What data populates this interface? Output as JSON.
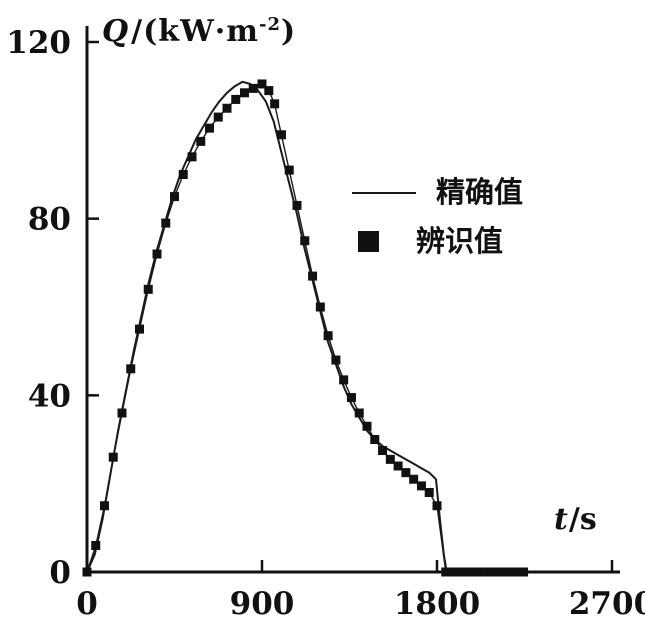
{
  "chart_data": {
    "type": "line",
    "title": "",
    "xlabel": {
      "var": "t",
      "unit": "/s"
    },
    "ylabel": {
      "var": "Q",
      "unit_prefix": "/(kW·m",
      "unit_sup": "-2",
      "unit_suffix": ")"
    },
    "xlim": [
      0,
      2700
    ],
    "ylim": [
      0,
      120
    ],
    "x_ticks": [
      0,
      900,
      1800,
      2700
    ],
    "y_ticks": [
      0,
      40,
      80,
      120
    ],
    "grid": false,
    "legend_position": "center-right",
    "line_color": "#1a1a1a",
    "marker_color": "#111111",
    "series": [
      {
        "name": "精确值",
        "type": "line",
        "marker": "none",
        "points": [
          [
            0,
            0
          ],
          [
            40,
            4
          ],
          [
            80,
            12
          ],
          [
            120,
            22
          ],
          [
            160,
            32
          ],
          [
            200,
            41
          ],
          [
            240,
            50
          ],
          [
            280,
            58
          ],
          [
            320,
            66
          ],
          [
            360,
            73
          ],
          [
            400,
            79
          ],
          [
            440,
            85
          ],
          [
            480,
            90
          ],
          [
            520,
            94
          ],
          [
            560,
            98
          ],
          [
            600,
            101
          ],
          [
            640,
            104
          ],
          [
            680,
            106.5
          ],
          [
            720,
            108.5
          ],
          [
            760,
            110
          ],
          [
            800,
            111
          ],
          [
            840,
            110.5
          ],
          [
            880,
            109
          ],
          [
            920,
            106.5
          ],
          [
            960,
            102
          ],
          [
            1000,
            95
          ],
          [
            1040,
            88
          ],
          [
            1080,
            81
          ],
          [
            1120,
            73
          ],
          [
            1160,
            66
          ],
          [
            1200,
            59
          ],
          [
            1240,
            52
          ],
          [
            1280,
            47
          ],
          [
            1320,
            42
          ],
          [
            1360,
            38
          ],
          [
            1400,
            35
          ],
          [
            1440,
            32
          ],
          [
            1480,
            30
          ],
          [
            1520,
            28.5
          ],
          [
            1560,
            27.5
          ],
          [
            1600,
            26.5
          ],
          [
            1640,
            25.5
          ],
          [
            1680,
            24.5
          ],
          [
            1720,
            23.5
          ],
          [
            1760,
            22.5
          ],
          [
            1795,
            21
          ],
          [
            1815,
            12
          ],
          [
            1835,
            4
          ],
          [
            1850,
            0
          ],
          [
            1950,
            0
          ],
          [
            2050,
            0
          ],
          [
            2150,
            0
          ],
          [
            2250,
            0
          ]
        ]
      },
      {
        "name": "辨识值",
        "type": "line+marker",
        "marker": "filled-square",
        "points": [
          [
            0,
            0
          ],
          [
            45,
            6
          ],
          [
            90,
            15
          ],
          [
            135,
            26
          ],
          [
            180,
            36
          ],
          [
            225,
            46
          ],
          [
            270,
            55
          ],
          [
            315,
            64
          ],
          [
            360,
            72
          ],
          [
            405,
            79
          ],
          [
            450,
            85
          ],
          [
            495,
            90
          ],
          [
            540,
            94
          ],
          [
            585,
            97.5
          ],
          [
            630,
            100.5
          ],
          [
            675,
            103
          ],
          [
            720,
            105
          ],
          [
            765,
            107
          ],
          [
            810,
            108.5
          ],
          [
            855,
            109.5
          ],
          [
            900,
            110.5
          ],
          [
            935,
            109
          ],
          [
            965,
            106
          ],
          [
            1000,
            99
          ],
          [
            1040,
            91
          ],
          [
            1080,
            83
          ],
          [
            1120,
            75
          ],
          [
            1160,
            67
          ],
          [
            1200,
            60
          ],
          [
            1240,
            53.5
          ],
          [
            1280,
            48
          ],
          [
            1320,
            43.5
          ],
          [
            1360,
            39.5
          ],
          [
            1400,
            36
          ],
          [
            1440,
            33
          ],
          [
            1480,
            30
          ],
          [
            1520,
            27.5
          ],
          [
            1560,
            25.5
          ],
          [
            1600,
            24
          ],
          [
            1640,
            22.5
          ],
          [
            1680,
            21
          ],
          [
            1720,
            19.5
          ],
          [
            1760,
            18
          ],
          [
            1800,
            15
          ],
          [
            1845,
            0
          ],
          [
            1885,
            0
          ],
          [
            1925,
            0
          ],
          [
            1965,
            0
          ],
          [
            2005,
            0
          ],
          [
            2045,
            0
          ],
          [
            2085,
            0
          ],
          [
            2125,
            0
          ],
          [
            2165,
            0
          ],
          [
            2205,
            0
          ],
          [
            2245,
            0
          ]
        ]
      }
    ]
  }
}
